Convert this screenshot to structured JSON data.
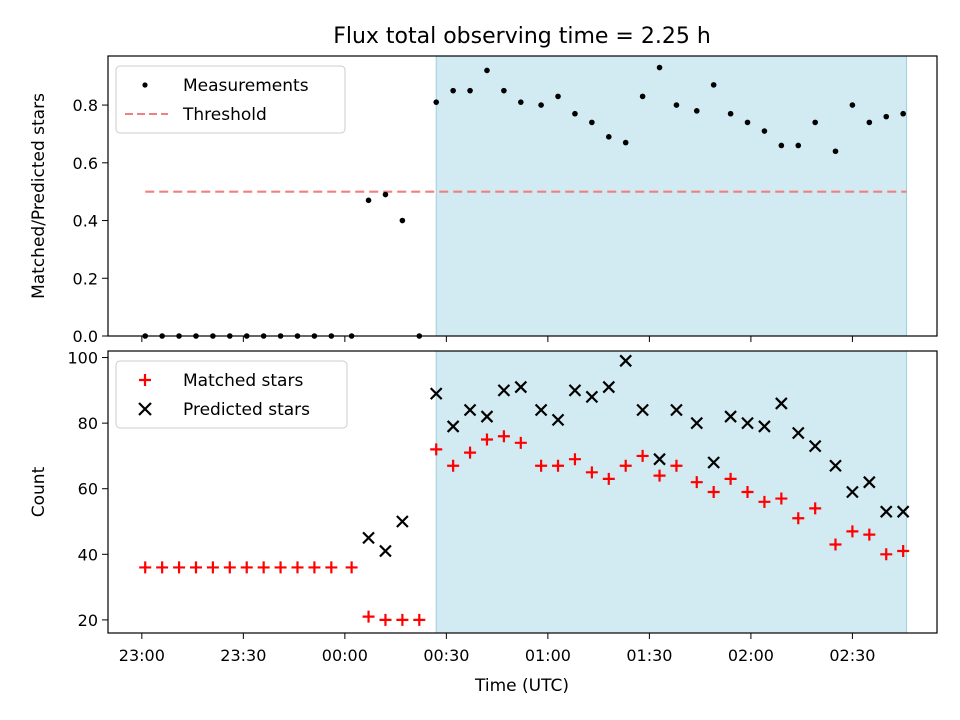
{
  "figure": {
    "title": "Flux total observing time = 2.25 h",
    "xlabel": "Time (UTC)"
  },
  "colors": {
    "shade": "#add8e6",
    "threshold": "#f08080",
    "matched": "#ff0000",
    "predicted": "#000000",
    "measurement": "#000000"
  },
  "chart_data": [
    {
      "type": "scatter",
      "ylabel": "Matched/Predicted stars",
      "ylim": [
        0,
        0.97
      ],
      "yticks": [
        "0.0",
        "0.2",
        "0.4",
        "0.6",
        "0.8"
      ],
      "ytick_values": [
        0,
        0.2,
        0.4,
        0.6,
        0.8
      ],
      "legend": {
        "placement": "upper-left",
        "entries": [
          "Measurements",
          "Threshold"
        ]
      },
      "shaded_span_minutes": [
        87,
        226
      ],
      "threshold": {
        "value": 0.5,
        "x_range_minutes": [
          1,
          226
        ]
      },
      "x_minutes": [
        1,
        6,
        11,
        16,
        21,
        26,
        31,
        36,
        41,
        46,
        51,
        56,
        62,
        67,
        72,
        77,
        82,
        87,
        92,
        97,
        102,
        107,
        112,
        118,
        123,
        128,
        133,
        138,
        143,
        148,
        153,
        158,
        164,
        169,
        174,
        179,
        184,
        189,
        194,
        199,
        205,
        210,
        215,
        220,
        225
      ],
      "series": [
        {
          "name": "Measurements",
          "values": [
            0,
            0,
            0,
            0,
            0,
            0,
            0,
            0,
            0,
            0,
            0,
            0,
            0,
            0.47,
            0.49,
            0.4,
            0,
            0.81,
            0.85,
            0.85,
            0.92,
            0.85,
            0.81,
            0.8,
            0.83,
            0.77,
            0.74,
            0.69,
            0.67,
            0.83,
            0.93,
            0.8,
            0.78,
            0.87,
            0.77,
            0.74,
            0.71,
            0.66,
            0.66,
            0.74,
            0.64,
            0.8,
            0.74,
            0.76,
            0.77
          ]
        }
      ]
    },
    {
      "type": "scatter",
      "ylabel": "Count",
      "xlabel": "Time (UTC)",
      "ylim": [
        16,
        102
      ],
      "yticks": [
        "20",
        "40",
        "60",
        "80",
        "100"
      ],
      "ytick_values": [
        20,
        40,
        60,
        80,
        100
      ],
      "xticks": [
        "23:00",
        "23:30",
        "00:00",
        "00:30",
        "01:00",
        "01:30",
        "02:00",
        "02:30"
      ],
      "xtick_minutes": [
        0,
        30,
        60,
        90,
        120,
        150,
        180,
        210
      ],
      "xlim_minutes": [
        -10,
        235
      ],
      "legend": {
        "placement": "upper-left",
        "entries": [
          "Matched stars",
          "Predicted stars"
        ]
      },
      "shaded_span_minutes": [
        87,
        226
      ],
      "x_minutes": [
        1,
        6,
        11,
        16,
        21,
        26,
        31,
        36,
        41,
        46,
        51,
        56,
        62,
        67,
        72,
        77,
        82,
        87,
        92,
        97,
        102,
        107,
        112,
        118,
        123,
        128,
        133,
        138,
        143,
        148,
        153,
        158,
        164,
        169,
        174,
        179,
        184,
        189,
        194,
        199,
        205,
        210,
        215,
        220,
        225
      ],
      "series": [
        {
          "name": "Matched stars",
          "values": [
            36,
            36,
            36,
            36,
            36,
            36,
            36,
            36,
            36,
            36,
            36,
            36,
            36,
            21,
            20,
            20,
            20,
            72,
            67,
            71,
            75,
            76,
            74,
            67,
            67,
            69,
            65,
            63,
            67,
            70,
            64,
            67,
            62,
            59,
            63,
            59,
            56,
            57,
            51,
            54,
            43,
            47,
            46,
            40,
            41
          ]
        },
        {
          "name": "Predicted stars",
          "values": [
            null,
            null,
            null,
            null,
            null,
            null,
            null,
            null,
            null,
            null,
            null,
            null,
            null,
            45,
            41,
            50,
            null,
            89,
            79,
            84,
            82,
            90,
            91,
            84,
            81,
            90,
            88,
            91,
            99,
            84,
            69,
            84,
            80,
            68,
            82,
            80,
            79,
            86,
            77,
            73,
            67,
            59,
            62,
            53,
            53
          ]
        }
      ]
    }
  ]
}
